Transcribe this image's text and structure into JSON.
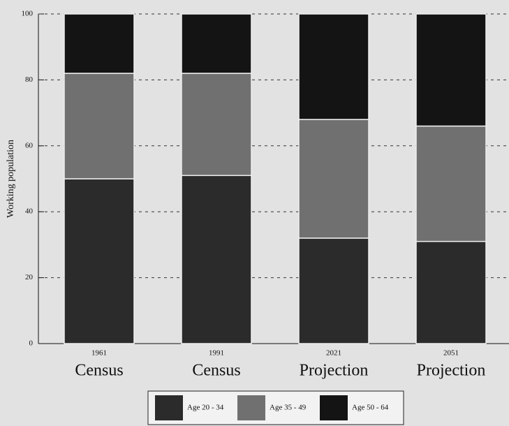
{
  "chart_data": {
    "type": "stacked_bar",
    "y_label": "Working population",
    "categories": [
      "1961",
      "1991",
      "2021",
      "2051"
    ],
    "category_groups": [
      "Census",
      "Census",
      "Projection",
      "Projection"
    ],
    "series": [
      {
        "name": "Age 20 - 34",
        "color": "#2b2b2b",
        "values": [
          50,
          51,
          32,
          31
        ]
      },
      {
        "name": "Age 35 - 49",
        "color": "#707070",
        "values": [
          32,
          31,
          36,
          35
        ]
      },
      {
        "name": "Age 50 - 64",
        "color": "#141414",
        "values": [
          18,
          18,
          32,
          34
        ]
      }
    ],
    "ylim": [
      0,
      100
    ],
    "yticks": [
      0,
      20,
      40,
      60,
      80,
      100
    ],
    "grid": true
  }
}
